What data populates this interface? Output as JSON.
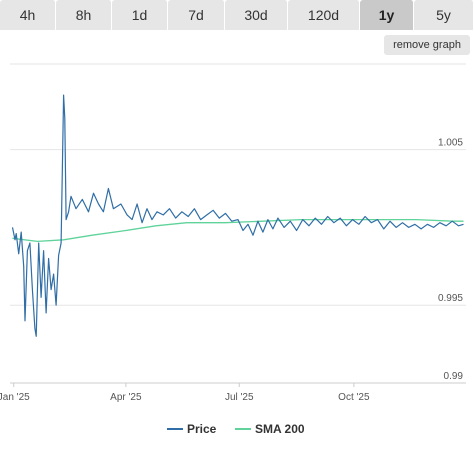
{
  "tabs": [
    {
      "label": "4h",
      "active": false
    },
    {
      "label": "8h",
      "active": false
    },
    {
      "label": "1d",
      "active": false
    },
    {
      "label": "7d",
      "active": false
    },
    {
      "label": "30d",
      "active": false
    },
    {
      "label": "120d",
      "active": false
    },
    {
      "label": "1y",
      "active": true
    },
    {
      "label": "5y",
      "active": false
    }
  ],
  "remove_graph_label": "remove graph",
  "chart_data": {
    "type": "line",
    "xlabel": "",
    "ylabel": "",
    "x_ticks": [
      "Jan '25",
      "Apr '25",
      "Jul '25",
      "Oct '25"
    ],
    "y_ticks": [
      "1.005",
      "0.995",
      "0.99"
    ],
    "ylim": [
      0.99,
      1.0105
    ],
    "grid": "horizontal",
    "legend_position": "bottom",
    "series": [
      {
        "name": "Price",
        "color": "#2f6ea6",
        "points": [
          [
            "2024-12-31",
            1.0
          ],
          [
            "2025-01-02",
            0.9992
          ],
          [
            "2025-01-03",
            0.9996
          ],
          [
            "2025-01-05",
            0.9983
          ],
          [
            "2025-01-07",
            0.9997
          ],
          [
            "2025-01-09",
            0.9975
          ],
          [
            "2025-01-10",
            0.994
          ],
          [
            "2025-01-12",
            0.9985
          ],
          [
            "2025-01-14",
            0.999
          ],
          [
            "2025-01-16",
            0.996
          ],
          [
            "2025-01-18",
            0.9935
          ],
          [
            "2025-01-19",
            0.993
          ],
          [
            "2025-01-21",
            0.999
          ],
          [
            "2025-01-23",
            0.9955
          ],
          [
            "2025-01-25",
            0.9985
          ],
          [
            "2025-01-27",
            0.9945
          ],
          [
            "2025-01-29",
            0.998
          ],
          [
            "2025-01-31",
            0.996
          ],
          [
            "2025-02-02",
            0.997
          ],
          [
            "2025-02-04",
            0.995
          ],
          [
            "2025-02-06",
            0.9982
          ],
          [
            "2025-02-08",
            0.999
          ],
          [
            "2025-02-10",
            1.0085
          ],
          [
            "2025-02-11",
            1.007
          ],
          [
            "2025-02-12",
            1.0005
          ],
          [
            "2025-02-14",
            1.001
          ],
          [
            "2025-02-16",
            1.002
          ],
          [
            "2025-02-20",
            1.0012
          ],
          [
            "2025-02-25",
            1.0018
          ],
          [
            "2025-03-02",
            1.001
          ],
          [
            "2025-03-06",
            1.0022
          ],
          [
            "2025-03-10",
            1.0015
          ],
          [
            "2025-03-14",
            1.001
          ],
          [
            "2025-03-18",
            1.0025
          ],
          [
            "2025-03-22",
            1.0012
          ],
          [
            "2025-03-28",
            1.0015
          ],
          [
            "2025-04-02",
            1.0008
          ],
          [
            "2025-04-06",
            1.0005
          ],
          [
            "2025-04-10",
            1.0015
          ],
          [
            "2025-04-14",
            1.0003
          ],
          [
            "2025-04-18",
            1.0012
          ],
          [
            "2025-04-22",
            1.0005
          ],
          [
            "2025-04-26",
            1.001
          ],
          [
            "2025-05-01",
            1.0008
          ],
          [
            "2025-05-06",
            1.0012
          ],
          [
            "2025-05-11",
            1.0006
          ],
          [
            "2025-05-16",
            1.001
          ],
          [
            "2025-05-21",
            1.0007
          ],
          [
            "2025-05-26",
            1.0012
          ],
          [
            "2025-05-31",
            1.0005
          ],
          [
            "2025-06-05",
            1.0008
          ],
          [
            "2025-06-10",
            1.0011
          ],
          [
            "2025-06-15",
            1.0006
          ],
          [
            "2025-06-20",
            1.0009
          ],
          [
            "2025-06-25",
            1.0004
          ],
          [
            "2025-06-30",
            1.0005
          ],
          [
            "2025-07-04",
            0.9998
          ],
          [
            "2025-07-08",
            1.0002
          ],
          [
            "2025-07-12",
            0.9995
          ],
          [
            "2025-07-16",
            1.0004
          ],
          [
            "2025-07-20",
            0.9997
          ],
          [
            "2025-07-24",
            1.0005
          ],
          [
            "2025-07-28",
            0.9999
          ],
          [
            "2025-08-01",
            1.0006
          ],
          [
            "2025-08-06",
            1.0
          ],
          [
            "2025-08-11",
            1.0004
          ],
          [
            "2025-08-16",
            0.9998
          ],
          [
            "2025-08-21",
            1.0005
          ],
          [
            "2025-08-26",
            1.0001
          ],
          [
            "2025-08-31",
            1.0006
          ],
          [
            "2025-09-05",
            1.0002
          ],
          [
            "2025-09-10",
            1.0007
          ],
          [
            "2025-09-15",
            1.0003
          ],
          [
            "2025-09-20",
            1.0006
          ],
          [
            "2025-09-25",
            1.0001
          ],
          [
            "2025-09-30",
            1.0005
          ],
          [
            "2025-10-05",
            1.0002
          ],
          [
            "2025-10-10",
            1.0007
          ],
          [
            "2025-10-15",
            1.0003
          ],
          [
            "2025-10-20",
            1.0005
          ],
          [
            "2025-10-25",
            0.9999
          ],
          [
            "2025-10-30",
            1.0004
          ],
          [
            "2025-11-04",
            1.0
          ],
          [
            "2025-11-09",
            1.0003
          ],
          [
            "2025-11-14",
            1.0
          ],
          [
            "2025-11-19",
            1.0002
          ],
          [
            "2025-11-24",
            0.9999
          ],
          [
            "2025-11-29",
            1.0002
          ],
          [
            "2025-12-04",
            1.0
          ],
          [
            "2025-12-09",
            1.0003
          ],
          [
            "2025-12-14",
            1.0001
          ],
          [
            "2025-12-19",
            1.0004
          ],
          [
            "2025-12-24",
            1.0001
          ],
          [
            "2025-12-28",
            1.0002
          ]
        ]
      },
      {
        "name": "SMA 200",
        "color": "#5fd39a",
        "points": [
          [
            "2024-12-31",
            0.9993
          ],
          [
            "2025-01-20",
            0.9991
          ],
          [
            "2025-02-10",
            0.9992
          ],
          [
            "2025-03-05",
            0.9995
          ],
          [
            "2025-04-01",
            0.9998
          ],
          [
            "2025-04-25",
            1.0001
          ],
          [
            "2025-05-20",
            1.0003
          ],
          [
            "2025-06-20",
            1.0003
          ],
          [
            "2025-07-20",
            1.0004
          ],
          [
            "2025-08-20",
            1.0005
          ],
          [
            "2025-09-20",
            1.0005
          ],
          [
            "2025-10-20",
            1.0005
          ],
          [
            "2025-11-20",
            1.0005
          ],
          [
            "2025-12-20",
            1.0004
          ],
          [
            "2025-12-28",
            1.0004
          ]
        ]
      }
    ]
  }
}
